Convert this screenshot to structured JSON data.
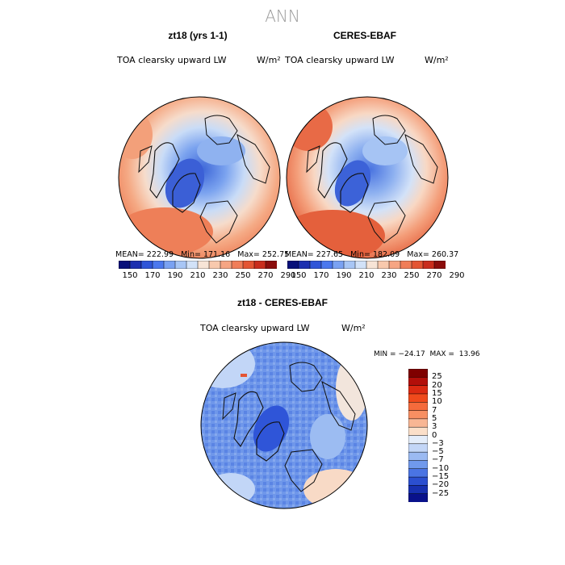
{
  "page": {
    "title": "ANN"
  },
  "panels": [
    {
      "title": "zt18 (yrs 1-1)",
      "variable": "TOA clearsky upward LW",
      "units": "W/m²",
      "stats": {
        "mean_label": "MEAN=",
        "mean": "222.99",
        "min_label": "Min=",
        "min": "171.16",
        "max_label": "Max=",
        "max": "252.75"
      }
    },
    {
      "title": "CERES-EBAF",
      "variable": "TOA clearsky upward LW",
      "units": "W/m²",
      "stats": {
        "mean_label": "MEAN=",
        "mean": "227.65",
        "min_label": "Min=",
        "min": "182.09",
        "max_label": "Max=",
        "max": "260.37"
      }
    }
  ],
  "abs_colorbar": {
    "labels": [
      "150",
      "170",
      "190",
      "210",
      "230",
      "250",
      "270",
      "290"
    ],
    "colors": [
      "#08107a",
      "#1c2fb0",
      "#2f55d8",
      "#4b78ee",
      "#7aa2f2",
      "#a8c6f5",
      "#d2e2f8",
      "#f7e4d6",
      "#f8c9ad",
      "#f6a583",
      "#f07d58",
      "#e45533",
      "#c92d1d",
      "#8b0d0c"
    ]
  },
  "diff_panel": {
    "title": "zt18 - CERES-EBAF",
    "variable": "TOA clearsky upward LW",
    "units": "W/m²",
    "stats": {
      "min_label": "MIN =",
      "min": "−24.17",
      "max_label": "MAX =",
      "max": "13.96"
    }
  },
  "diff_colorbar": {
    "labels": [
      "25",
      "20",
      "15",
      "10",
      "7",
      "5",
      "3",
      "0",
      "−3",
      "−5",
      "−7",
      "−10",
      "−15",
      "−20",
      "−25"
    ],
    "colors": [
      "#7f0000",
      "#b30f0a",
      "#dc2a12",
      "#f04a1c",
      "#f56b3c",
      "#f88f62",
      "#f8b694",
      "#fbdfc9",
      "#e4edfa",
      "#c3d6f7",
      "#9bbaf2",
      "#7099ec",
      "#4a74e3",
      "#2b4fd0",
      "#1730b0",
      "#09118b"
    ]
  },
  "colors": {
    "title_gray": "#9a9a9a",
    "coast": "#111111",
    "globe_border": "#000000"
  }
}
